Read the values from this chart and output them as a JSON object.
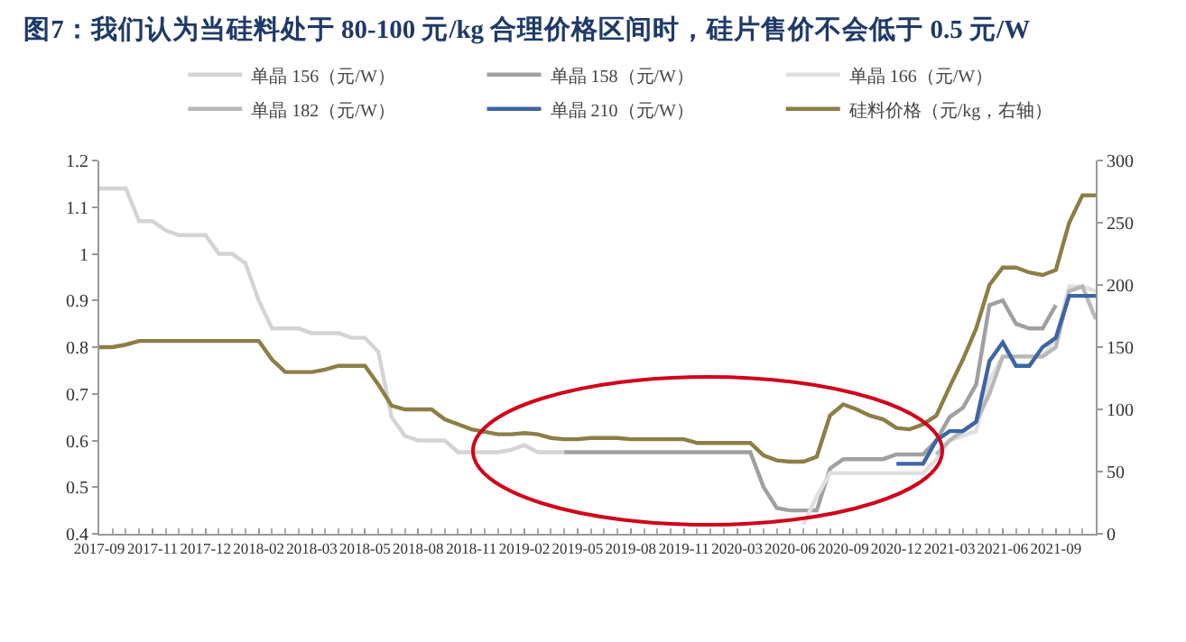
{
  "chart_data": {
    "type": "line",
    "title": "图7：我们认为当硅料处于 80-100 元/kg 合理价格区间时，硅片售价不会低于 0.5 元/W",
    "categories": [
      "2017-09",
      null,
      null,
      null,
      "2017-11",
      null,
      null,
      null,
      "2017-12",
      null,
      null,
      null,
      "2018-02",
      null,
      null,
      null,
      "2018-03",
      null,
      null,
      null,
      "2018-05",
      null,
      null,
      null,
      "2018-08",
      null,
      null,
      null,
      "2018-11",
      null,
      null,
      null,
      "2019-02",
      null,
      null,
      null,
      "2019-05",
      null,
      null,
      null,
      "2019-08",
      null,
      null,
      null,
      "2019-11",
      null,
      null,
      null,
      "2020-03",
      null,
      null,
      null,
      "2020-06",
      null,
      null,
      null,
      "2020-09",
      null,
      null,
      null,
      "2020-12",
      null,
      null,
      null,
      "2021-03",
      null,
      null,
      null,
      "2021-06",
      null,
      null,
      null,
      "2021-09",
      null,
      null,
      null
    ],
    "series": [
      {
        "name": "单晶 156（元/W）",
        "color": "#d4d4d4",
        "values": [
          1.14,
          1.14,
          1.14,
          1.07,
          1.07,
          1.05,
          1.04,
          1.04,
          1.04,
          1.0,
          1.0,
          0.98,
          0.9,
          0.84,
          0.84,
          0.84,
          0.83,
          0.83,
          0.83,
          0.82,
          0.82,
          0.79,
          0.65,
          0.61,
          0.6,
          0.6,
          0.6,
          0.575,
          0.575,
          0.575,
          0.575,
          0.58,
          0.59,
          0.575,
          0.575,
          0.575,
          null,
          null,
          null,
          null,
          null,
          null,
          null,
          null,
          null,
          null,
          null,
          null,
          null,
          null,
          null,
          null,
          null,
          null,
          null,
          null,
          null,
          null,
          null,
          null,
          null,
          null,
          null,
          null,
          null,
          null,
          null,
          null,
          null,
          null,
          null,
          null,
          null,
          null,
          null,
          null
        ]
      },
      {
        "name": "单晶 158（元/W）",
        "color": "#a0a0a0",
        "values": [
          null,
          null,
          null,
          null,
          null,
          null,
          null,
          null,
          null,
          null,
          null,
          null,
          null,
          null,
          null,
          null,
          null,
          null,
          null,
          null,
          null,
          null,
          null,
          null,
          null,
          null,
          null,
          null,
          null,
          null,
          null,
          null,
          null,
          null,
          null,
          0.575,
          0.575,
          0.575,
          0.575,
          0.575,
          0.575,
          0.575,
          0.575,
          0.575,
          0.575,
          0.575,
          0.575,
          0.575,
          0.575,
          0.575,
          0.5,
          0.455,
          0.45,
          0.45,
          0.45,
          0.54,
          0.56,
          0.56,
          0.56,
          0.56,
          0.57,
          0.57,
          0.57,
          0.6,
          0.65,
          0.67,
          0.72,
          0.89,
          0.9,
          0.85,
          0.84,
          0.84,
          0.89,
          null,
          null,
          null
        ]
      },
      {
        "name": "单晶 166（元/W）",
        "color": "#e0e0e0",
        "values": [
          null,
          null,
          null,
          null,
          null,
          null,
          null,
          null,
          null,
          null,
          null,
          null,
          null,
          null,
          null,
          null,
          null,
          null,
          null,
          null,
          null,
          null,
          null,
          null,
          null,
          null,
          null,
          null,
          null,
          null,
          null,
          null,
          null,
          null,
          null,
          null,
          null,
          null,
          null,
          null,
          null,
          null,
          null,
          null,
          null,
          null,
          null,
          null,
          null,
          null,
          null,
          null,
          null,
          0.42,
          0.48,
          0.53,
          0.53,
          0.53,
          0.53,
          0.53,
          0.53,
          0.53,
          0.53,
          0.56,
          0.6,
          0.61,
          0.62,
          0.73,
          0.78,
          0.78,
          0.78,
          0.78,
          0.82,
          0.93,
          0.93,
          0.92
        ]
      },
      {
        "name": "单晶 182（元/W）",
        "color": "#b8b8b8",
        "values": [
          null,
          null,
          null,
          null,
          null,
          null,
          null,
          null,
          null,
          null,
          null,
          null,
          null,
          null,
          null,
          null,
          null,
          null,
          null,
          null,
          null,
          null,
          null,
          null,
          null,
          null,
          null,
          null,
          null,
          null,
          null,
          null,
          null,
          null,
          null,
          null,
          null,
          null,
          null,
          null,
          null,
          null,
          null,
          null,
          null,
          null,
          null,
          null,
          null,
          null,
          null,
          null,
          null,
          null,
          null,
          null,
          null,
          null,
          null,
          null,
          null,
          null,
          null,
          0.57,
          0.6,
          0.62,
          0.64,
          0.7,
          0.78,
          0.78,
          0.78,
          0.78,
          0.8,
          0.92,
          0.93,
          0.86
        ]
      },
      {
        "name": "单晶 210（元/W）",
        "color": "#3d65a3",
        "values": [
          null,
          null,
          null,
          null,
          null,
          null,
          null,
          null,
          null,
          null,
          null,
          null,
          null,
          null,
          null,
          null,
          null,
          null,
          null,
          null,
          null,
          null,
          null,
          null,
          null,
          null,
          null,
          null,
          null,
          null,
          null,
          null,
          null,
          null,
          null,
          null,
          null,
          null,
          null,
          null,
          null,
          null,
          null,
          null,
          null,
          null,
          null,
          null,
          null,
          null,
          null,
          null,
          null,
          null,
          null,
          null,
          null,
          null,
          null,
          null,
          0.55,
          0.55,
          0.55,
          0.6,
          0.62,
          0.62,
          0.64,
          0.77,
          0.81,
          0.76,
          0.76,
          0.8,
          0.82,
          0.91,
          0.91,
          0.91
        ]
      },
      {
        "name": "硅料价格（元/kg，右轴）",
        "color": "#8c7e46",
        "axis": "y2",
        "values": [
          150,
          150,
          152,
          155,
          155,
          155,
          155,
          155,
          155,
          155,
          155,
          155,
          155,
          140,
          130,
          130,
          130,
          132,
          135,
          135,
          135,
          120,
          103,
          100,
          100,
          100,
          92,
          88,
          84,
          82,
          80,
          80,
          81,
          80,
          77,
          76,
          76,
          77,
          77,
          77,
          76,
          76,
          76,
          76,
          76,
          73,
          73,
          73,
          73,
          73,
          63,
          59,
          58,
          58,
          62,
          95,
          104,
          100,
          95,
          92,
          85,
          84,
          88,
          95,
          118,
          140,
          165,
          200,
          214,
          214,
          210,
          208,
          212,
          250,
          272,
          272
        ]
      }
    ],
    "ylim": [
      0.4,
      1.2
    ],
    "yticks": [
      0.4,
      0.5,
      0.6,
      0.7,
      0.8,
      0.9,
      1,
      1.1,
      1.2
    ],
    "y2lim": [
      0,
      300
    ],
    "y2ticks": [
      0,
      50,
      100,
      150,
      200,
      250,
      300
    ],
    "legend": "top",
    "grid": false,
    "marker": "none",
    "line_style": "solid"
  }
}
